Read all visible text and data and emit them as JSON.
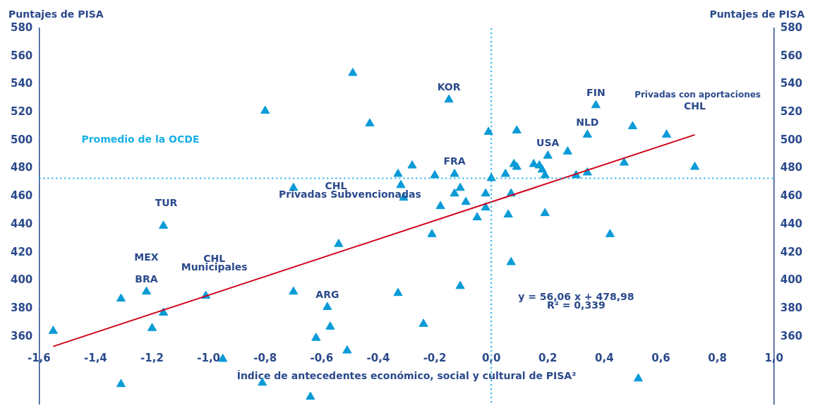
{
  "chart_data": {
    "type": "scatter",
    "xlabel": "Índice de antecedentes económico, social y cultural de PISA²",
    "ylabel": "Puntajes de PISA",
    "y2label": "Puntajes de PISA",
    "xlim": [
      -1.6,
      1.0
    ],
    "xticks": [
      {
        "value": -1.6,
        "label": "-1,6"
      },
      {
        "value": -1.4,
        "label": "-1,4"
      },
      {
        "value": -1.2,
        "label": "-1,2"
      },
      {
        "value": -1.0,
        "label": "-1,0"
      },
      {
        "value": -0.8,
        "label": "-0,8"
      },
      {
        "value": -0.6,
        "label": "-0,6"
      },
      {
        "value": -0.4,
        "label": "-0,4"
      },
      {
        "value": -0.2,
        "label": "-0,2"
      },
      {
        "value": 0,
        "label": "0,0"
      },
      {
        "value": 0.2,
        "label": "0,2"
      },
      {
        "value": 0.4,
        "label": "0,4"
      },
      {
        "value": 0.6,
        "label": "0,6"
      },
      {
        "value": 0.8,
        "label": "0,8"
      },
      {
        "value": 1.0,
        "label": "1,0"
      }
    ],
    "ylim": [
      312,
      580
    ],
    "yticks": [
      360,
      380,
      400,
      420,
      440,
      460,
      480,
      500,
      520,
      540,
      560,
      580
    ],
    "y2lim": [
      312,
      580
    ],
    "y2ticks": [
      360,
      380,
      400,
      420,
      440,
      460,
      480,
      500,
      520,
      540,
      560,
      580
    ],
    "marker": "triangle",
    "grid": false,
    "series": [
      {
        "color": "#0a9bd7",
        "x": [
          -1.55,
          -1.31,
          -1.22,
          -1.16,
          -1.16,
          -1.2,
          -1.01,
          -0.95,
          -1.31,
          -0.81,
          -0.8,
          -0.7,
          -0.7,
          -0.64,
          -0.62,
          -0.58,
          -0.57,
          -0.51,
          -0.54,
          -0.49,
          -0.43,
          -0.33,
          -0.33,
          -0.32,
          -0.31,
          -0.28,
          -0.24,
          -0.21,
          -0.2,
          -0.18,
          -0.15,
          -0.13,
          -0.13,
          -0.11,
          -0.11,
          -0.09,
          -0.05,
          -0.02,
          -0.02,
          -0.01,
          0.0,
          0.05,
          0.06,
          0.07,
          0.07,
          0.08,
          0.09,
          0.09,
          0.15,
          0.17,
          0.18,
          0.19,
          0.2,
          0.19,
          0.27,
          0.3,
          0.34,
          0.34,
          0.37,
          0.42,
          0.47,
          0.5,
          0.52,
          0.62,
          0.72
        ],
        "values": [
          364,
          387,
          392,
          439,
          377,
          366,
          389,
          344,
          326,
          327,
          521,
          466,
          392,
          317,
          359,
          381,
          367,
          350,
          426,
          548,
          512,
          391,
          476,
          468,
          459,
          482,
          369,
          433,
          475,
          453,
          529,
          476,
          462,
          466,
          396,
          456,
          445,
          452,
          462,
          506,
          473,
          476,
          447,
          462,
          413,
          483,
          481,
          507,
          483,
          482,
          479,
          475,
          489,
          448,
          492,
          475,
          504,
          477,
          525,
          433,
          484,
          510,
          330,
          504,
          481
        ]
      },
      {
        "type": "line",
        "color": "#d0021b",
        "marker": "none",
        "line_style": "solid",
        "x": [
          -1.55,
          0.72
        ],
        "values": [
          353,
          504
        ]
      }
    ],
    "ref_lines": [
      {
        "axis": "y",
        "value": 473,
        "label": "Promedio de la OCDE",
        "color": "#1ab0e8",
        "line_style": "dotted"
      },
      {
        "axis": "x",
        "value": 0,
        "color": "#1ab0e8",
        "line_style": "dotted"
      }
    ],
    "annotations": [
      {
        "text": "KOR",
        "x": -0.15,
        "y": 529
      },
      {
        "text": "FIN",
        "x": 0.37,
        "y": 525
      },
      {
        "text": "NLD",
        "x": 0.34,
        "y": 504
      },
      {
        "text": "USA",
        "x": 0.2,
        "y": 489
      },
      {
        "text": "FRA",
        "x": -0.13,
        "y": 476
      },
      {
        "text": "BRA",
        "x": -1.22,
        "y": 392
      },
      {
        "text": "ARG",
        "x": -0.58,
        "y": 381
      },
      "Privadas con aportaciones",
      "CHL",
      "CHL",
      "Privadas Subvencionadas",
      "TUR",
      "MEX",
      "CHL",
      "Municipales",
      "y = 56,06 x + 478,98",
      "R² = 0,339"
    ]
  }
}
